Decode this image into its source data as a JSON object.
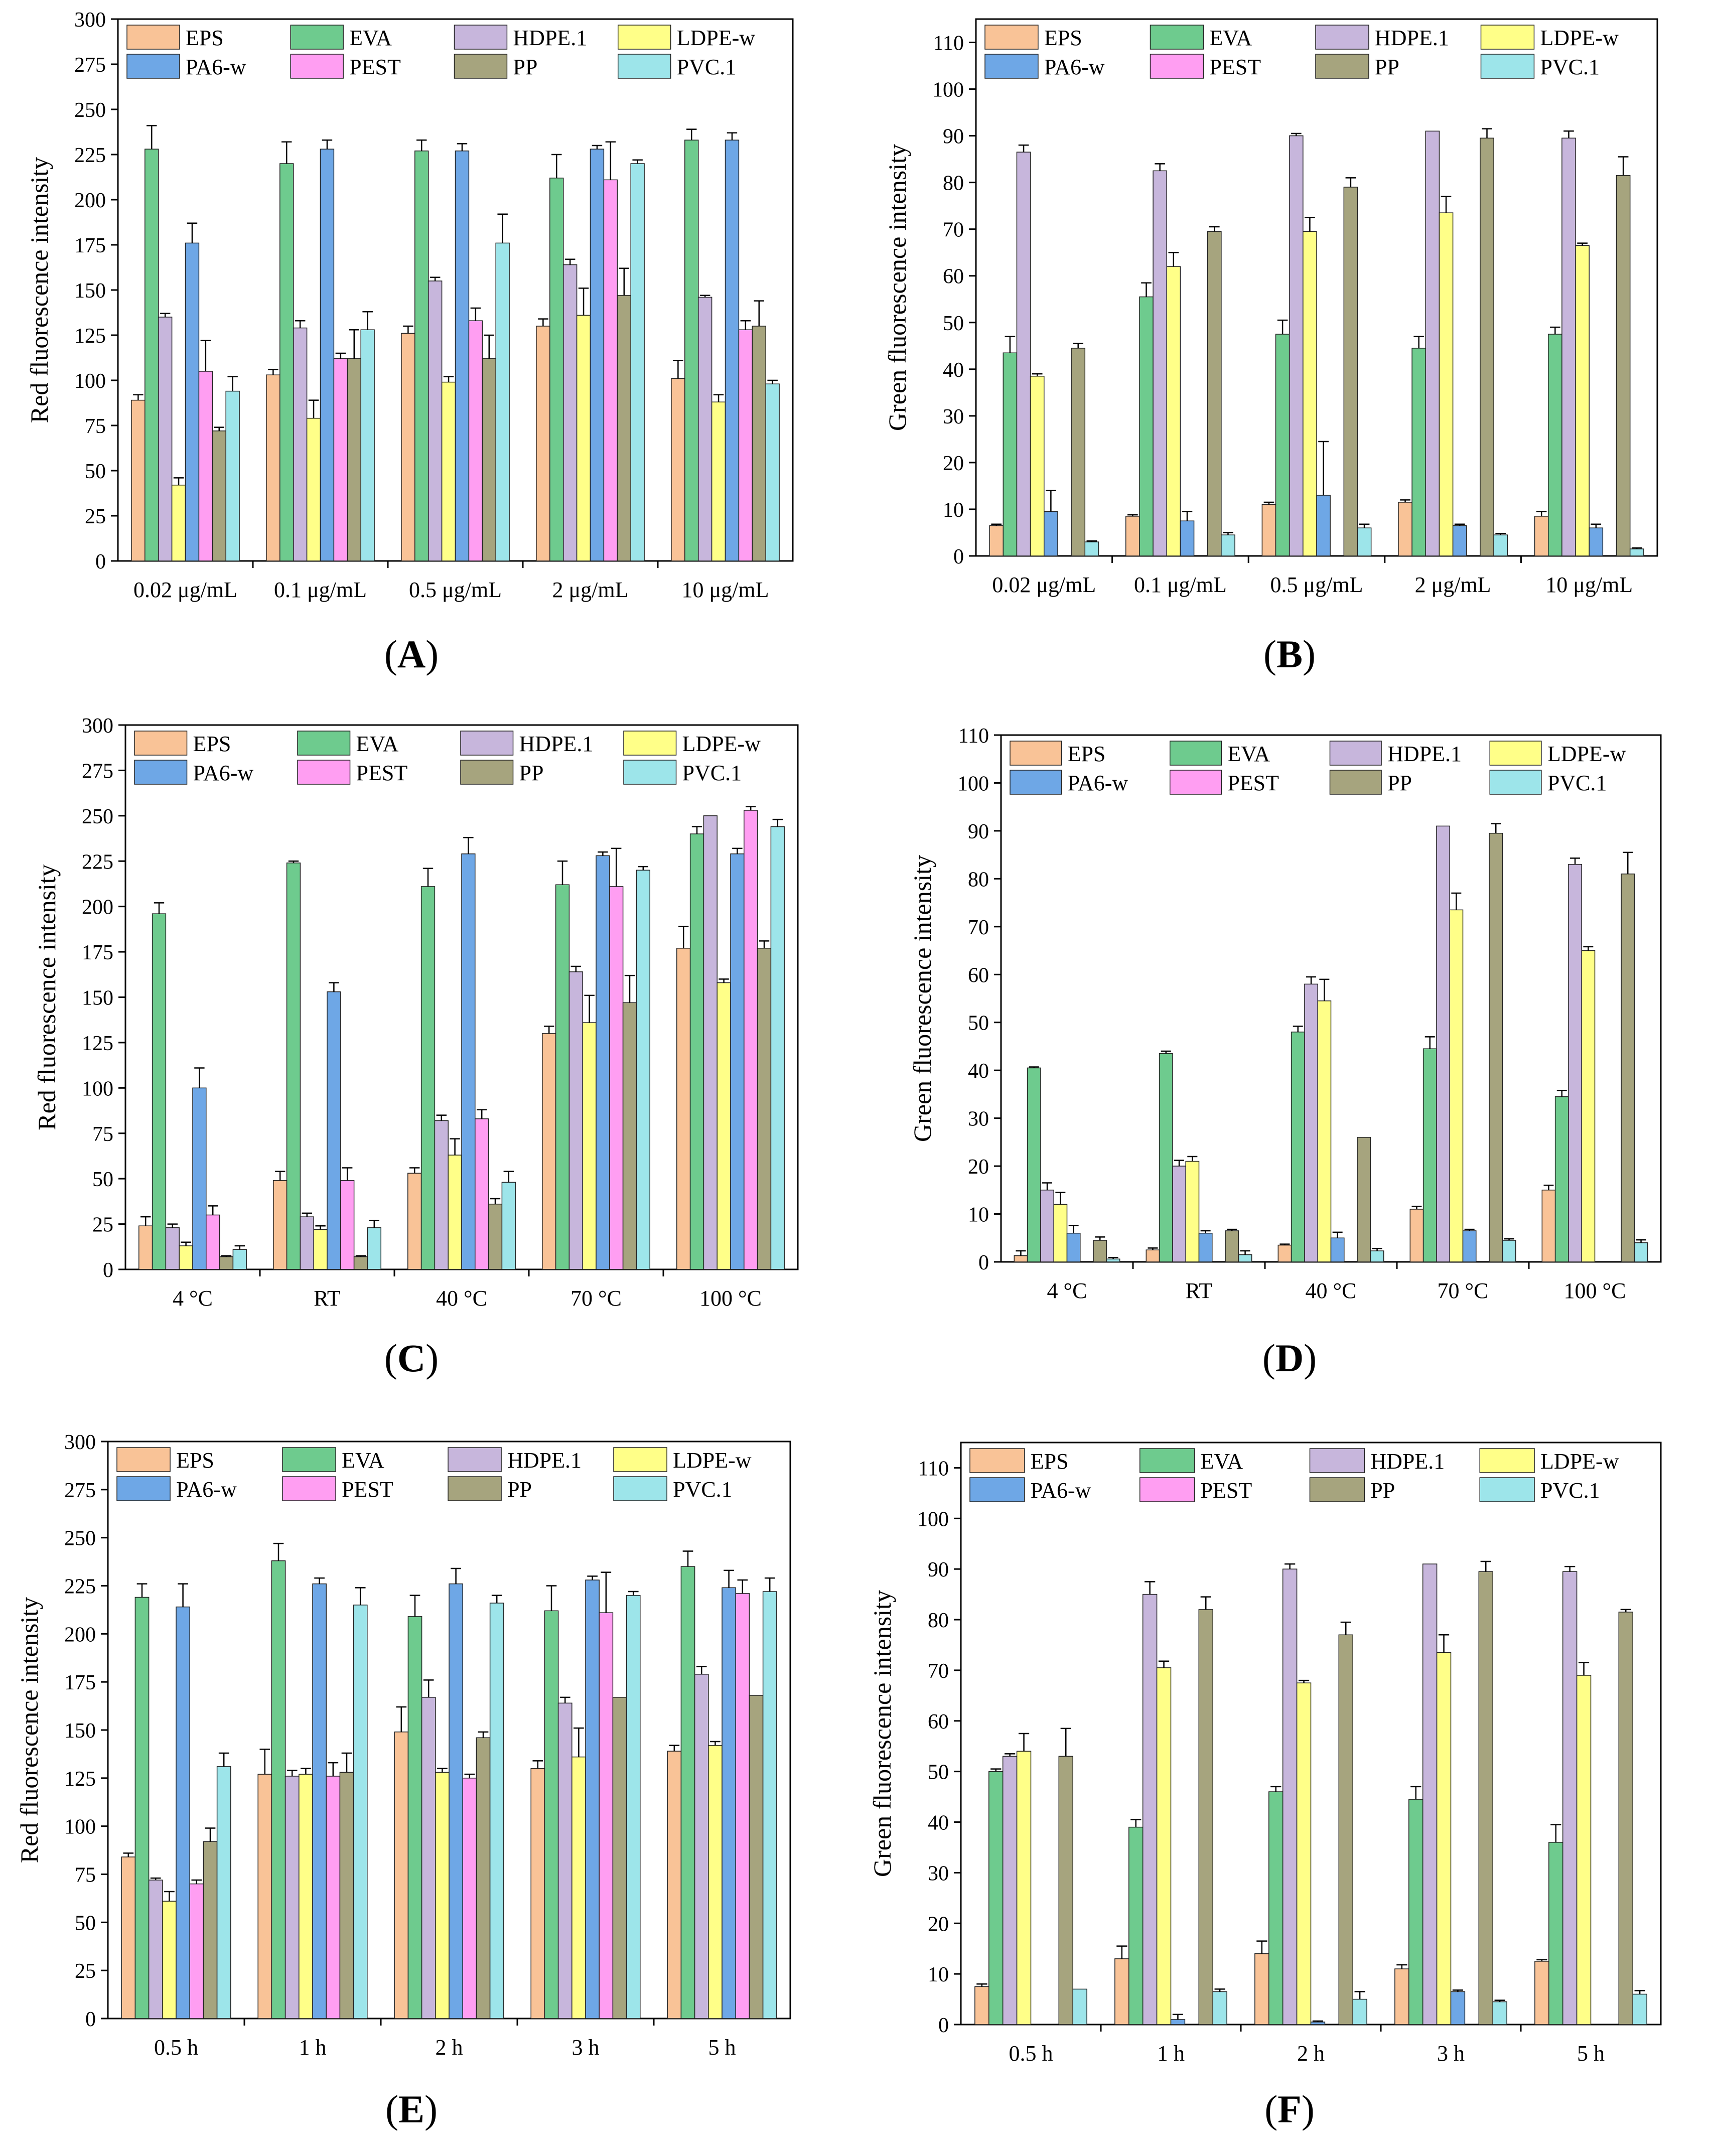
{
  "colors": {
    "EPS": "#f9c397",
    "EVA": "#6ecb8e",
    "HDPE.1": "#c7b6dc",
    "LDPE-w": "#ffff88",
    "PA6-w": "#6ea7e6",
    "PEST": "#ff9ef2",
    "PP": "#a6a47e",
    "PVC.1": "#9de5ea"
  },
  "chart_data": [
    {
      "id": "A",
      "label": "A",
      "type": "bar",
      "ylabel": "Red fluorescence intensity",
      "ylim": [
        0,
        300
      ],
      "yticks": [
        0,
        25,
        50,
        75,
        100,
        125,
        150,
        175,
        200,
        225,
        250,
        275,
        300
      ],
      "categories": [
        "0.02 μg/mL",
        "0.1 μg/mL",
        "0.5 μg/mL",
        "2 μg/mL",
        "10 μg/mL"
      ],
      "series": [
        {
          "name": "EPS",
          "values": [
            89,
            103,
            126,
            130,
            101
          ],
          "errors": [
            3,
            3,
            4,
            4,
            10
          ]
        },
        {
          "name": "EVA",
          "values": [
            228,
            220,
            227,
            212,
            233
          ],
          "errors": [
            13,
            12,
            6,
            13,
            6
          ]
        },
        {
          "name": "HDPE.1",
          "values": [
            135,
            129,
            155,
            164,
            146
          ],
          "errors": [
            2,
            4,
            2,
            3,
            1
          ]
        },
        {
          "name": "LDPE-w",
          "values": [
            42,
            79,
            99,
            136,
            88
          ],
          "errors": [
            4,
            10,
            3,
            15,
            4
          ]
        },
        {
          "name": "PA6-w",
          "values": [
            176,
            228,
            227,
            228,
            233
          ],
          "errors": [
            11,
            5,
            4,
            2,
            4
          ]
        },
        {
          "name": "PEST",
          "values": [
            105,
            112,
            133,
            211,
            128
          ],
          "errors": [
            17,
            3,
            7,
            21,
            5
          ]
        },
        {
          "name": "PP",
          "values": [
            72,
            112,
            112,
            147,
            130
          ],
          "errors": [
            2,
            16,
            13,
            15,
            14
          ]
        },
        {
          "name": "PVC.1",
          "values": [
            94,
            128,
            176,
            220,
            98
          ],
          "errors": [
            8,
            10,
            16,
            2,
            2
          ]
        }
      ]
    },
    {
      "id": "B",
      "label": "B",
      "type": "bar",
      "ylabel": "Green fluorescence intensity",
      "ylim": [
        0,
        115
      ],
      "yticks": [
        0,
        10,
        20,
        30,
        40,
        50,
        60,
        70,
        80,
        90,
        100,
        110
      ],
      "categories": [
        "0.02 μg/mL",
        "0.1 μg/mL",
        "0.5 μg/mL",
        "2 μg/mL",
        "10 μg/mL"
      ],
      "series": [
        {
          "name": "EPS",
          "values": [
            6.5,
            8.5,
            11,
            11.5,
            8.5
          ],
          "errors": [
            0.3,
            0.3,
            0.5,
            0.5,
            1
          ]
        },
        {
          "name": "EVA",
          "values": [
            43.5,
            55.5,
            47.5,
            44.5,
            47.5
          ],
          "errors": [
            3.5,
            3,
            3,
            2.5,
            1.5
          ]
        },
        {
          "name": "HDPE.1",
          "values": [
            86.5,
            82.5,
            90,
            91,
            89.5
          ],
          "errors": [
            1.5,
            1.5,
            0.5,
            0,
            1.5
          ]
        },
        {
          "name": "LDPE-w",
          "values": [
            38.5,
            62,
            69.5,
            73.5,
            66.5
          ],
          "errors": [
            0.5,
            3,
            3,
            3.5,
            0.5
          ]
        },
        {
          "name": "PA6-w",
          "values": [
            9.5,
            7.5,
            13,
            6.5,
            6
          ],
          "errors": [
            4.5,
            2,
            11.5,
            0.3,
            0.8
          ]
        },
        {
          "name": "PEST",
          "values": [
            0,
            0,
            0,
            0,
            0
          ],
          "errors": [
            0,
            0,
            0,
            0,
            0
          ]
        },
        {
          "name": "PP",
          "values": [
            44.5,
            69.5,
            79,
            89.5,
            81.5
          ],
          "errors": [
            1,
            1,
            2,
            2,
            4
          ]
        },
        {
          "name": "PVC.1",
          "values": [
            3,
            4.5,
            6,
            4.5,
            1.5
          ],
          "errors": [
            0.2,
            0.5,
            0.8,
            0.3,
            0.2
          ]
        }
      ]
    },
    {
      "id": "C",
      "label": "C",
      "type": "bar",
      "ylabel": "Red fluorescence intensity",
      "ylim": [
        0,
        300
      ],
      "yticks": [
        0,
        25,
        50,
        75,
        100,
        125,
        150,
        175,
        200,
        225,
        250,
        275,
        300
      ],
      "categories": [
        "4 °C",
        "RT",
        "40 °C",
        "70 °C",
        "100 °C"
      ],
      "series": [
        {
          "name": "EPS",
          "values": [
            24,
            49,
            53,
            130,
            177
          ],
          "errors": [
            5,
            5,
            3,
            4,
            12
          ]
        },
        {
          "name": "EVA",
          "values": [
            196,
            224,
            211,
            212,
            240
          ],
          "errors": [
            6,
            1,
            10,
            13,
            4
          ]
        },
        {
          "name": "HDPE.1",
          "values": [
            23,
            29,
            82,
            164,
            250
          ],
          "errors": [
            2,
            2,
            3,
            3,
            0
          ]
        },
        {
          "name": "LDPE-w",
          "values": [
            13,
            22,
            63,
            136,
            158
          ],
          "errors": [
            2,
            2,
            9,
            15,
            2
          ]
        },
        {
          "name": "PA6-w",
          "values": [
            100,
            153,
            229,
            228,
            229
          ],
          "errors": [
            11,
            5,
            9,
            2,
            3
          ]
        },
        {
          "name": "PEST",
          "values": [
            30,
            49,
            83,
            211,
            253
          ],
          "errors": [
            5,
            7,
            5,
            21,
            2
          ]
        },
        {
          "name": "PP",
          "values": [
            7,
            7,
            36,
            147,
            177
          ],
          "errors": [
            0.5,
            0.5,
            3,
            15,
            4
          ]
        },
        {
          "name": "PVC.1",
          "values": [
            11,
            23,
            48,
            220,
            244
          ],
          "errors": [
            2,
            4,
            6,
            2,
            4
          ]
        }
      ]
    },
    {
      "id": "D",
      "label": "D",
      "type": "bar",
      "ylabel": "Green fluorescence intensity",
      "ylim": [
        0,
        110
      ],
      "yticks": [
        0,
        10,
        20,
        30,
        40,
        50,
        60,
        70,
        80,
        90,
        100,
        110
      ],
      "categories": [
        "4 °C",
        "RT",
        "40 °C",
        "70 °C",
        "100 °C"
      ],
      "series": [
        {
          "name": "EPS",
          "values": [
            1.3,
            2.5,
            3.5,
            11,
            15
          ],
          "errors": [
            1,
            0.4,
            0.2,
            0.6,
            1
          ]
        },
        {
          "name": "EVA",
          "values": [
            40.5,
            43.5,
            48,
            44.5,
            34.5
          ],
          "errors": [
            0.2,
            0.5,
            1.2,
            2.5,
            1.3
          ]
        },
        {
          "name": "HDPE.1",
          "values": [
            15,
            20,
            58,
            91,
            83
          ],
          "errors": [
            1.5,
            1.2,
            1.5,
            0,
            1.3
          ]
        },
        {
          "name": "LDPE-w",
          "values": [
            12,
            21,
            54.5,
            73.5,
            65
          ],
          "errors": [
            2.5,
            1,
            4.5,
            3.5,
            0.8
          ]
        },
        {
          "name": "PA6-w",
          "values": [
            6,
            6,
            5,
            6.5,
            0
          ],
          "errors": [
            1.6,
            0.5,
            1.2,
            0.3,
            0
          ]
        },
        {
          "name": "PEST",
          "values": [
            0,
            0,
            0,
            0,
            0
          ],
          "errors": [
            0,
            0,
            0,
            0,
            0
          ]
        },
        {
          "name": "PP",
          "values": [
            4.5,
            6.5,
            26,
            89.5,
            81
          ],
          "errors": [
            0.7,
            0.3,
            0,
            2,
            4.5
          ]
        },
        {
          "name": "PVC.1",
          "values": [
            0.6,
            1.5,
            2.3,
            4.5,
            4
          ],
          "errors": [
            0.3,
            0.8,
            0.5,
            0.3,
            0.6
          ]
        }
      ]
    },
    {
      "id": "E",
      "label": "E",
      "type": "bar",
      "ylabel": "Red fluorescence intensity",
      "ylim": [
        0,
        300
      ],
      "yticks": [
        0,
        25,
        50,
        75,
        100,
        125,
        150,
        175,
        200,
        225,
        250,
        275,
        300
      ],
      "categories": [
        "0.5 h",
        "1 h",
        "2 h",
        "3 h",
        "5 h"
      ],
      "series": [
        {
          "name": "EPS",
          "values": [
            84,
            127,
            149,
            130,
            139
          ],
          "errors": [
            2,
            13,
            13,
            4,
            3
          ]
        },
        {
          "name": "EVA",
          "values": [
            219,
            238,
            209,
            212,
            235
          ],
          "errors": [
            7,
            9,
            11,
            13,
            8
          ]
        },
        {
          "name": "HDPE.1",
          "values": [
            72,
            126,
            167,
            164,
            179
          ],
          "errors": [
            1,
            3,
            9,
            3,
            4
          ]
        },
        {
          "name": "LDPE-w",
          "values": [
            61,
            127,
            128,
            136,
            142
          ],
          "errors": [
            5,
            3,
            2,
            15,
            2
          ]
        },
        {
          "name": "PA6-w",
          "values": [
            214,
            226,
            226,
            228,
            224
          ],
          "errors": [
            12,
            3,
            8,
            2,
            9
          ]
        },
        {
          "name": "PEST",
          "values": [
            70,
            126,
            125,
            211,
            221
          ],
          "errors": [
            2,
            7,
            2,
            21,
            7
          ]
        },
        {
          "name": "PP",
          "values": [
            92,
            128,
            146,
            167,
            168
          ],
          "errors": [
            7,
            10,
            3,
            0,
            0
          ]
        },
        {
          "name": "PVC.1",
          "values": [
            131,
            215,
            216,
            220,
            222
          ],
          "errors": [
            7,
            9,
            4,
            2,
            7
          ]
        }
      ]
    },
    {
      "id": "F",
      "label": "F",
      "type": "bar",
      "ylabel": "Green fluorescence intensity",
      "ylim": [
        0,
        115
      ],
      "yticks": [
        0,
        10,
        20,
        30,
        40,
        50,
        60,
        70,
        80,
        90,
        100,
        110
      ],
      "categories": [
        "0.5 h",
        "1 h",
        "2 h",
        "3 h",
        "5 h"
      ],
      "series": [
        {
          "name": "EPS",
          "values": [
            7.5,
            13,
            14,
            11,
            12.5
          ],
          "errors": [
            0.5,
            2.5,
            2.5,
            0.8,
            0.3
          ]
        },
        {
          "name": "EVA",
          "values": [
            50,
            39,
            46,
            44.5,
            36
          ],
          "errors": [
            0.5,
            1.5,
            1,
            2.5,
            3.5
          ]
        },
        {
          "name": "HDPE.1",
          "values": [
            53,
            85,
            90,
            91,
            89.5
          ],
          "errors": [
            0.5,
            2.5,
            1,
            0,
            1
          ]
        },
        {
          "name": "LDPE-w",
          "values": [
            54,
            70.5,
            67.5,
            73.5,
            69
          ],
          "errors": [
            3.5,
            1.3,
            0.5,
            3.5,
            2.5
          ]
        },
        {
          "name": "PA6-w",
          "values": [
            0,
            1,
            0.5,
            6.5,
            0
          ],
          "errors": [
            0,
            1,
            0.2,
            0.3,
            0
          ]
        },
        {
          "name": "PEST",
          "values": [
            0,
            0,
            0,
            0,
            0
          ],
          "errors": [
            0,
            0,
            0,
            0,
            0
          ]
        },
        {
          "name": "PP",
          "values": [
            53,
            82,
            77,
            89.5,
            81.5
          ],
          "errors": [
            5.5,
            2.5,
            2.5,
            2,
            0.5
          ]
        },
        {
          "name": "PVC.1",
          "values": [
            7,
            6.5,
            5,
            4.5,
            6
          ],
          "errors": [
            0,
            0.5,
            1.5,
            0.3,
            0.7
          ]
        }
      ]
    }
  ]
}
